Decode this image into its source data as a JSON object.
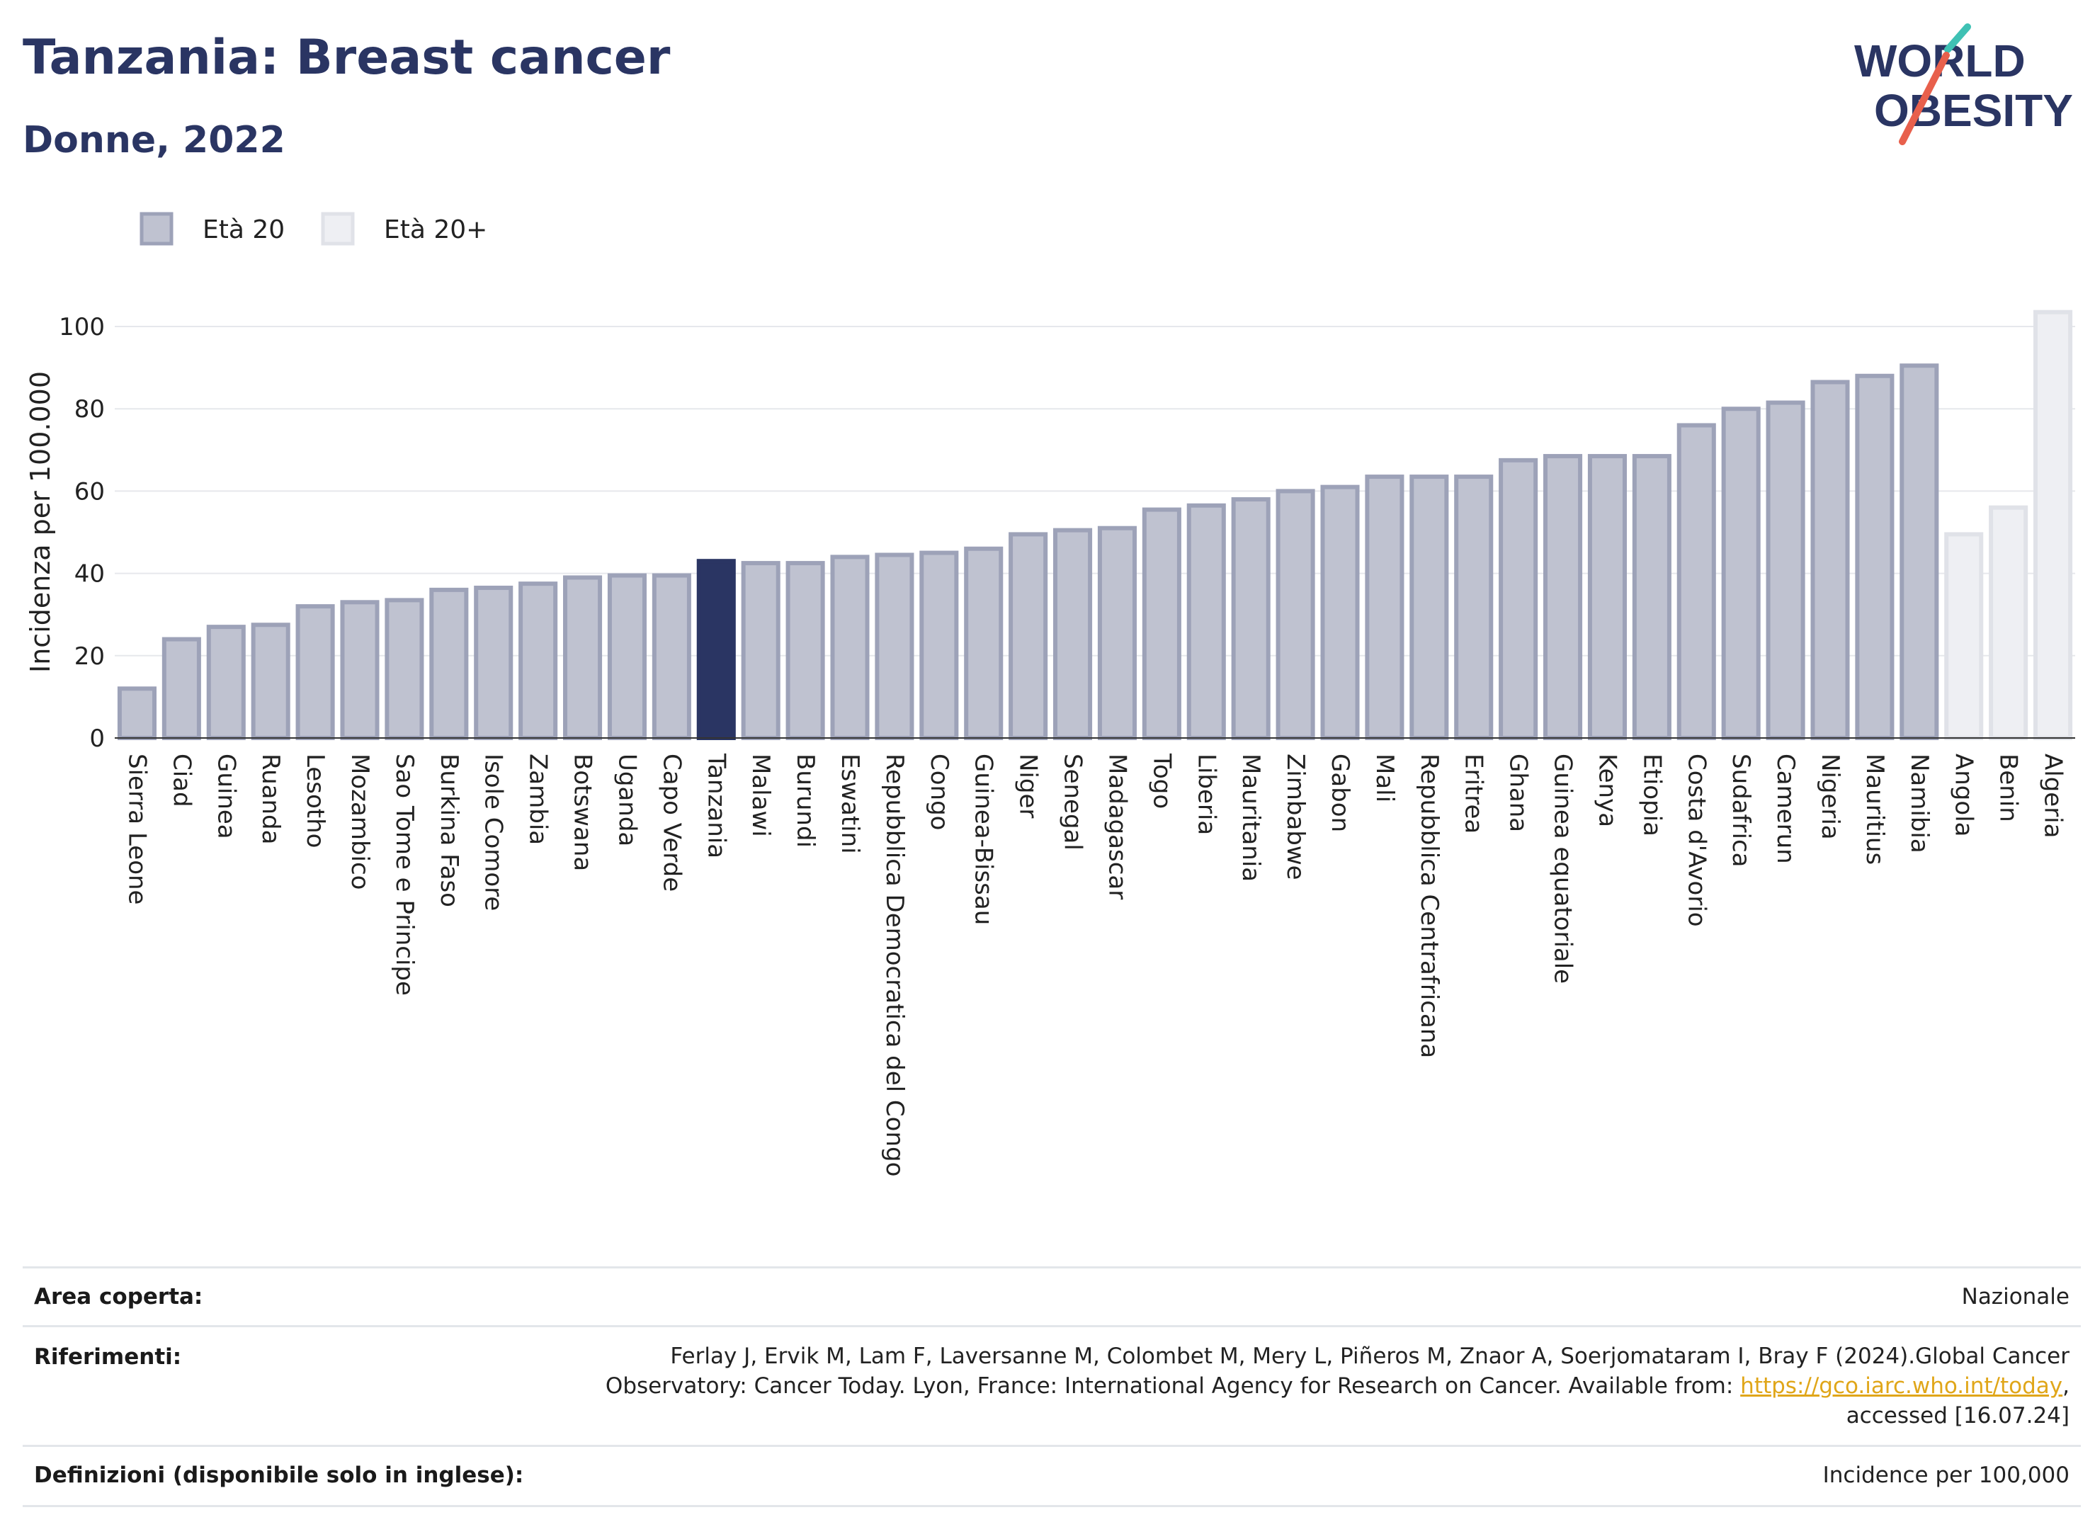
{
  "title": "Tanzania: Breast cancer",
  "subtitle": "Donne, 2022",
  "logo": {
    "line1": "WORLD",
    "line2": "OBESITY"
  },
  "colors": {
    "title": "#2a3563",
    "bar_fill": "#bfc2d0",
    "bar_stroke": "#9da2b8",
    "highlight": "#2a3563",
    "light_fill": "#eeeff3",
    "light_stroke": "#e0e2e8",
    "link": "#e0a619"
  },
  "chart_data": {
    "type": "bar",
    "ylabel": "Incidenza per 100.000",
    "ylim": [
      0,
      105
    ],
    "yticks": [
      0,
      20,
      40,
      60,
      80,
      100
    ],
    "grid": true,
    "legend_position": "top-left",
    "legend": [
      {
        "label": "Età 20",
        "style": "normal"
      },
      {
        "label": "Età 20+",
        "style": "light"
      }
    ],
    "highlight": "Tanzania",
    "categories": [
      "Sierra Leone",
      "Ciad",
      "Guinea",
      "Ruanda",
      "Lesotho",
      "Mozambico",
      "Sao Tome e Principe",
      "Burkina Faso",
      "Isole Comore",
      "Zambia",
      "Botswana",
      "Uganda",
      "Capo Verde",
      "Tanzania",
      "Malawi",
      "Burundi",
      "Eswatini",
      "Repubblica Democratica del Congo",
      "Congo",
      "Guinea-Bissau",
      "Niger",
      "Senegal",
      "Madagascar",
      "Togo",
      "Liberia",
      "Mauritania",
      "Zimbabwe",
      "Gabon",
      "Mali",
      "Repubblica Centrafricana",
      "Eritrea",
      "Ghana",
      "Guinea equatoriale",
      "Kenya",
      "Etiopia",
      "Costa d'Avorio",
      "Sudafrica",
      "Camerun",
      "Nigeria",
      "Mauritius",
      "Namibia",
      "Angola",
      "Benin",
      "Algeria"
    ],
    "values": [
      12,
      24,
      27,
      27.5,
      32,
      33,
      33.5,
      36,
      36.5,
      37.5,
      39,
      39.5,
      39.5,
      43,
      42.5,
      42.5,
      44,
      44.5,
      45,
      46,
      49.5,
      50.5,
      51,
      55.5,
      56.5,
      58,
      60,
      61,
      63.5,
      63.5,
      63.5,
      67.5,
      68.5,
      68.5,
      68.5,
      76,
      80,
      81.5,
      86.5,
      88,
      90.5,
      49.5,
      56,
      103.5
    ],
    "series_index": [
      0,
      0,
      0,
      0,
      0,
      0,
      0,
      0,
      0,
      0,
      0,
      0,
      0,
      0,
      0,
      0,
      0,
      0,
      0,
      0,
      0,
      0,
      0,
      0,
      0,
      0,
      0,
      0,
      0,
      0,
      0,
      0,
      0,
      0,
      0,
      0,
      0,
      0,
      0,
      0,
      0,
      1,
      1,
      1
    ]
  },
  "footer": {
    "area_label": "Area coperta:",
    "area_value": "Nazionale",
    "ref_label": "Riferimenti:",
    "ref_text_1": "Ferlay J, Ervik M, Lam F, Laversanne M, Colombet M, Mery L, Piñeros M, Znaor A, Soerjomataram I, Bray F (2024).Global Cancer",
    "ref_text_2": "Observatory: Cancer Today. Lyon, France: International Agency for Research on Cancer. Available from: ",
    "ref_link": "https://gco.iarc.who.int/today",
    "ref_text_3": ",",
    "ref_text_4": "accessed [16.07.24]",
    "def_label": "Definizioni (disponibile solo in inglese):",
    "def_value": "Incidence per 100,000"
  }
}
